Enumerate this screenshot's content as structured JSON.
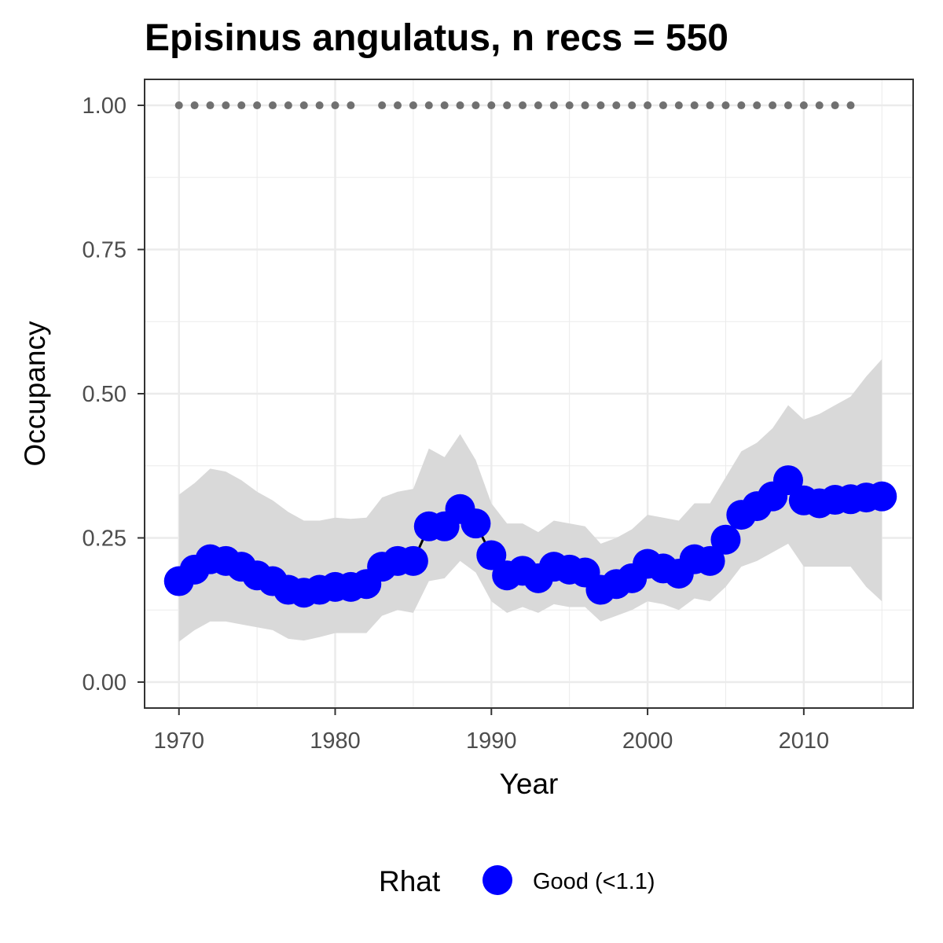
{
  "chart_data": {
    "type": "line",
    "title": "Episinus angulatus, n recs = 550",
    "xlabel": "Year",
    "ylabel": "Occupancy",
    "xlim": [
      1967.8,
      1917.0
    ],
    "ylim": [
      -0.045,
      1.045
    ],
    "x_ticks": [
      1970,
      1980,
      1990,
      2000,
      2010
    ],
    "x_tick_labels": [
      "1970",
      "1980",
      "1990",
      "2000",
      "2010"
    ],
    "y_ticks": [
      0,
      0.25,
      0.5,
      0.75,
      1.0
    ],
    "y_tick_labels": [
      "0.00",
      "0.25",
      "0.50",
      "0.75",
      "1.00"
    ],
    "grid": true,
    "legend_position": "bottom",
    "legend": {
      "title": "Rhat",
      "entries": [
        {
          "label": "Good (<1.1)",
          "color": "#0000ff"
        }
      ]
    },
    "colors": {
      "points": "#0000ff",
      "line": "#000000",
      "ribbon": "#d9d9d9",
      "record_dots": "#707070",
      "panel_border": "#333333",
      "grid": "#ebebeb"
    },
    "record_years": [
      1970,
      1971,
      1972,
      1973,
      1974,
      1975,
      1976,
      1977,
      1978,
      1979,
      1980,
      1981,
      1983,
      1984,
      1985,
      1986,
      1987,
      1988,
      1989,
      1990,
      1991,
      1992,
      1993,
      1994,
      1995,
      1996,
      1997,
      1998,
      1999,
      2000,
      2001,
      2002,
      2003,
      2004,
      2005,
      2006,
      2007,
      2008,
      2009,
      2010,
      2011,
      2012,
      2013
    ],
    "record_value": 1.0,
    "series": [
      {
        "years": [
          1970,
          1971,
          1972,
          1973,
          1974,
          1975,
          1976,
          1977,
          1978,
          1979,
          1980,
          1981,
          1982,
          1983,
          1984,
          1985,
          1986,
          1987,
          1988,
          1989,
          1990,
          1991,
          1992,
          1993,
          1994,
          1995,
          1996,
          1997,
          1998,
          1999,
          2000,
          2001,
          2002,
          2003,
          2004,
          2005,
          2006,
          2007,
          2008,
          2009,
          2010,
          2011,
          2012,
          2013,
          2014,
          2015
        ],
        "mean": [
          0.175,
          0.195,
          0.213,
          0.21,
          0.2,
          0.185,
          0.175,
          0.16,
          0.155,
          0.16,
          0.165,
          0.165,
          0.17,
          0.2,
          0.21,
          0.21,
          0.27,
          0.27,
          0.3,
          0.275,
          0.22,
          0.185,
          0.193,
          0.18,
          0.2,
          0.195,
          0.19,
          0.16,
          0.17,
          0.18,
          0.205,
          0.197,
          0.188,
          0.213,
          0.21,
          0.247,
          0.29,
          0.305,
          0.322,
          0.35,
          0.315,
          0.31,
          0.316,
          0.317,
          0.32,
          0.322
        ],
        "lower": [
          0.07,
          0.09,
          0.105,
          0.105,
          0.1,
          0.095,
          0.09,
          0.075,
          0.072,
          0.078,
          0.085,
          0.085,
          0.085,
          0.115,
          0.125,
          0.12,
          0.175,
          0.18,
          0.21,
          0.19,
          0.14,
          0.12,
          0.13,
          0.12,
          0.135,
          0.13,
          0.13,
          0.105,
          0.115,
          0.125,
          0.14,
          0.135,
          0.125,
          0.145,
          0.14,
          0.165,
          0.2,
          0.21,
          0.225,
          0.24,
          0.2,
          0.2,
          0.2,
          0.2,
          0.165,
          0.14
        ],
        "upper": [
          0.325,
          0.345,
          0.37,
          0.365,
          0.35,
          0.33,
          0.315,
          0.295,
          0.28,
          0.28,
          0.285,
          0.283,
          0.285,
          0.32,
          0.33,
          0.335,
          0.405,
          0.39,
          0.43,
          0.385,
          0.31,
          0.275,
          0.275,
          0.26,
          0.28,
          0.275,
          0.27,
          0.24,
          0.25,
          0.265,
          0.29,
          0.285,
          0.28,
          0.31,
          0.31,
          0.355,
          0.4,
          0.415,
          0.44,
          0.48,
          0.455,
          0.465,
          0.48,
          0.495,
          0.53,
          0.56
        ]
      }
    ]
  }
}
